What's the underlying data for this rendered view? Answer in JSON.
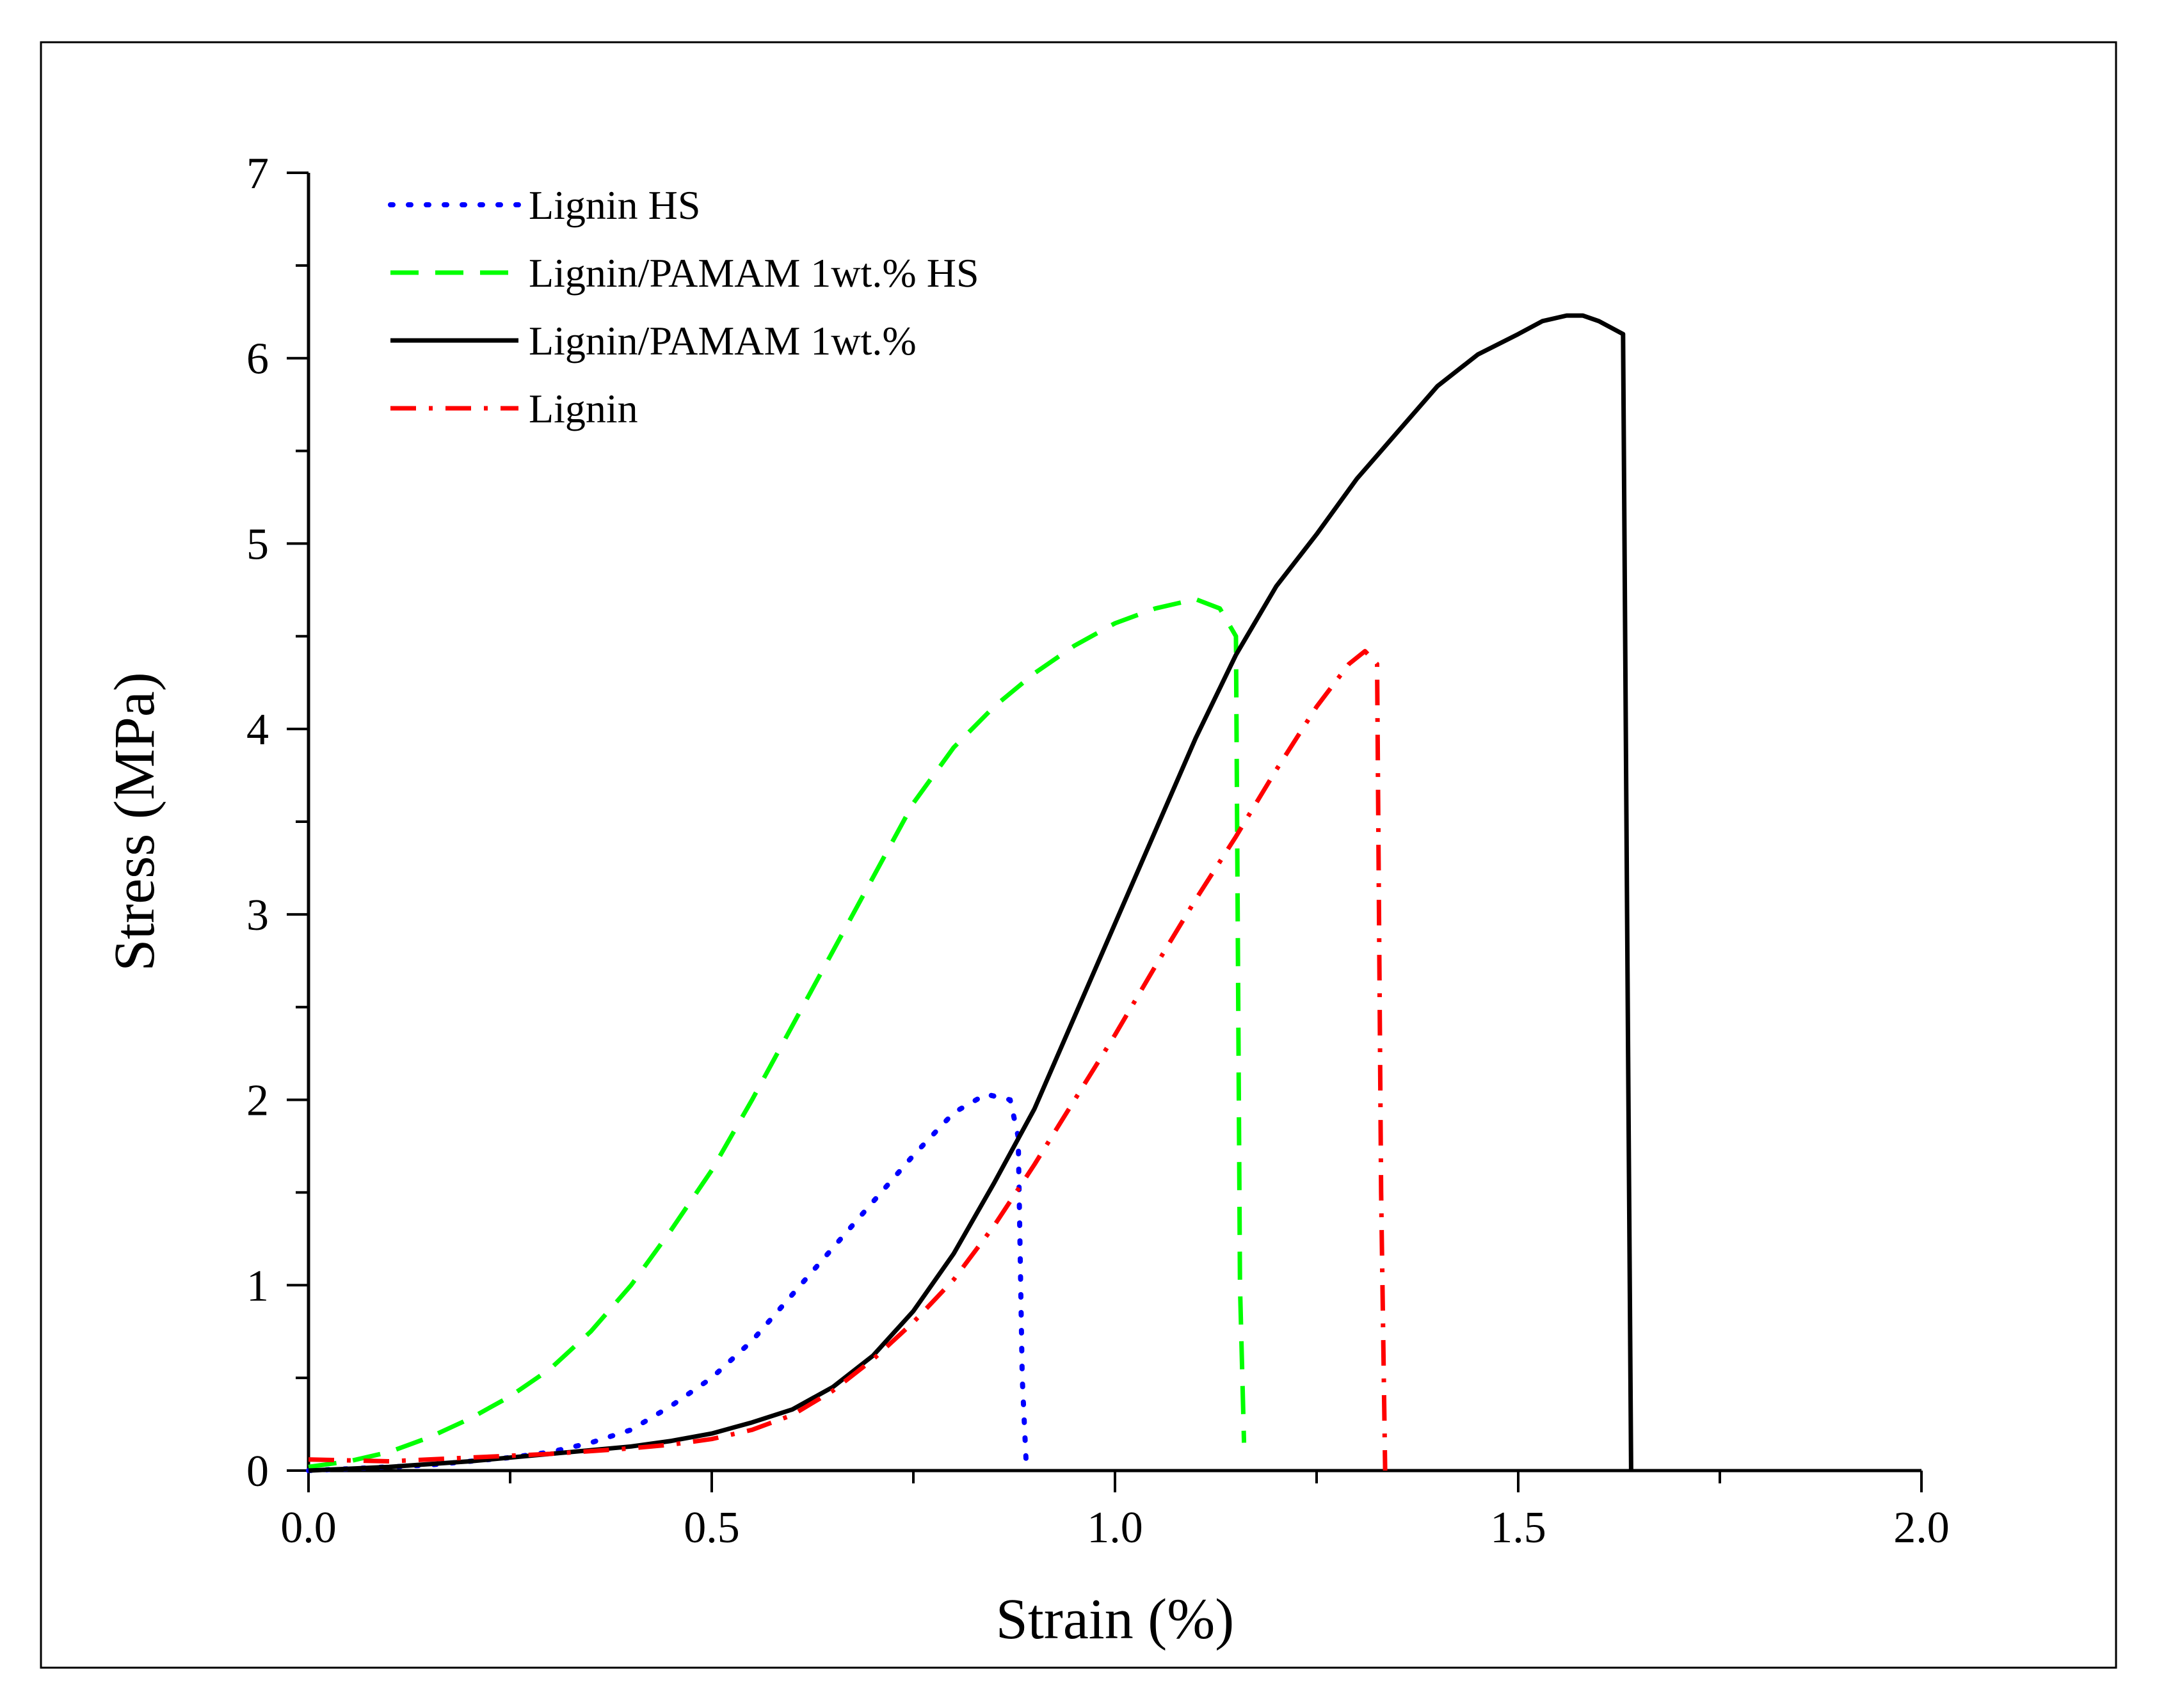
{
  "chart_data": {
    "type": "line",
    "title": "",
    "xlabel": "Strain (%)",
    "ylabel": "Stress (MPa)",
    "xlim": [
      0,
      2.0
    ],
    "ylim": [
      0,
      7
    ],
    "xticks": [
      "0.0",
      "0.5",
      "1.0",
      "1.5",
      "2.0"
    ],
    "yticks": [
      "0",
      "1",
      "2",
      "3",
      "4",
      "5",
      "6",
      "7"
    ],
    "legend_position": "top-left",
    "series": [
      {
        "name": "Lignin HS",
        "color": "#0000ff",
        "style": "dotted",
        "x": [
          0.0,
          0.05,
          0.1,
          0.15,
          0.2,
          0.25,
          0.3,
          0.35,
          0.4,
          0.45,
          0.5,
          0.55,
          0.6,
          0.65,
          0.7,
          0.75,
          0.8,
          0.84,
          0.87,
          0.88,
          0.885,
          0.89
        ],
        "y": [
          0.0,
          0.01,
          0.02,
          0.03,
          0.05,
          0.07,
          0.1,
          0.15,
          0.22,
          0.35,
          0.5,
          0.7,
          0.95,
          1.2,
          1.45,
          1.7,
          1.93,
          2.03,
          2.0,
          1.8,
          0.5,
          0.03
        ]
      },
      {
        "name": "Lignin/PAMAM 1wt.% HS",
        "color": "#00ff00",
        "style": "dashed",
        "x": [
          0.0,
          0.05,
          0.1,
          0.15,
          0.2,
          0.25,
          0.3,
          0.35,
          0.4,
          0.45,
          0.5,
          0.55,
          0.6,
          0.65,
          0.7,
          0.75,
          0.8,
          0.85,
          0.9,
          0.95,
          1.0,
          1.05,
          1.1,
          1.13,
          1.15,
          1.155,
          1.16
        ],
        "y": [
          0.02,
          0.05,
          0.1,
          0.18,
          0.28,
          0.4,
          0.55,
          0.75,
          1.0,
          1.3,
          1.62,
          2.0,
          2.4,
          2.8,
          3.2,
          3.6,
          3.9,
          4.12,
          4.3,
          4.45,
          4.57,
          4.65,
          4.7,
          4.65,
          4.5,
          1.0,
          0.15
        ]
      },
      {
        "name": "Lignin/PAMAM 1wt.%",
        "color": "#000000",
        "style": "solid",
        "x": [
          0.0,
          0.05,
          0.1,
          0.2,
          0.3,
          0.4,
          0.45,
          0.5,
          0.55,
          0.6,
          0.65,
          0.7,
          0.75,
          0.8,
          0.85,
          0.9,
          0.95,
          1.0,
          1.05,
          1.1,
          1.15,
          1.2,
          1.25,
          1.3,
          1.35,
          1.4,
          1.45,
          1.5,
          1.53,
          1.56,
          1.58,
          1.6,
          1.63,
          1.635,
          1.64
        ],
        "y": [
          0.0,
          0.01,
          0.02,
          0.05,
          0.09,
          0.13,
          0.16,
          0.2,
          0.26,
          0.33,
          0.45,
          0.62,
          0.86,
          1.17,
          1.55,
          1.95,
          2.45,
          2.95,
          3.45,
          3.95,
          4.4,
          4.77,
          5.05,
          5.35,
          5.6,
          5.85,
          6.02,
          6.13,
          6.2,
          6.23,
          6.23,
          6.2,
          6.13,
          3.0,
          0.0
        ]
      },
      {
        "name": "Lignin",
        "color": "#ff0000",
        "style": "dash-dot",
        "x": [
          0.0,
          0.1,
          0.2,
          0.3,
          0.4,
          0.45,
          0.5,
          0.55,
          0.6,
          0.65,
          0.7,
          0.75,
          0.8,
          0.85,
          0.9,
          0.95,
          1.0,
          1.05,
          1.1,
          1.15,
          1.2,
          1.25,
          1.29,
          1.31,
          1.325,
          1.33,
          1.335
        ],
        "y": [
          0.06,
          0.05,
          0.07,
          0.09,
          0.12,
          0.14,
          0.17,
          0.22,
          0.3,
          0.43,
          0.6,
          0.8,
          1.03,
          1.32,
          1.65,
          2.0,
          2.35,
          2.72,
          3.08,
          3.42,
          3.78,
          4.12,
          4.35,
          4.42,
          4.35,
          1.5,
          0.0
        ]
      }
    ]
  }
}
